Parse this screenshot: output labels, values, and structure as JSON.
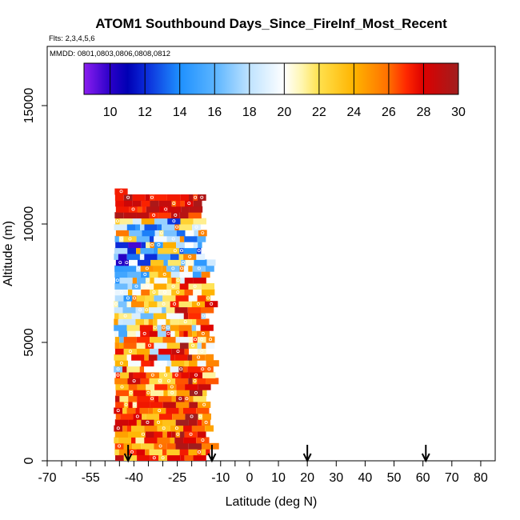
{
  "chart_data": {
    "type": "heatmap",
    "title": "ATOM1 Southbound Days_Since_FireInf_Most_Recent",
    "subtitle_flights": "Flts: 2,3,4,5,6",
    "subtitle_dates": "MMDD: 0801,0803,0806,0808,0812",
    "xlabel": "Latitude (deg N)",
    "ylabel": "Altitude (m)",
    "xlim": [
      -70,
      85
    ],
    "ylim": [
      0,
      17500
    ],
    "x_ticks_major": [
      -70,
      -55,
      -40,
      -25,
      -10,
      0,
      10,
      20,
      30,
      40,
      50,
      60,
      70,
      80
    ],
    "x_tick_labels": [
      "-70",
      "-55",
      "-40",
      "-25",
      "-10",
      "0",
      "10",
      "20",
      "30",
      "40",
      "50",
      "60",
      "70",
      "80"
    ],
    "x_ticks_minor": [
      -65,
      -60,
      -50,
      -45,
      -35,
      -30,
      -20,
      -15,
      -5
    ],
    "y_ticks": [
      0,
      5000,
      10000,
      15000
    ],
    "y_tick_labels": [
      "0",
      "5000",
      "10000",
      "15000"
    ],
    "colorbar": {
      "min": 8.5,
      "max": 30,
      "ticks": [
        10,
        12,
        14,
        16,
        18,
        20,
        22,
        24,
        26,
        28,
        30
      ],
      "tick_labels": [
        "10",
        "12",
        "14",
        "16",
        "18",
        "20",
        "22",
        "24",
        "26",
        "28",
        "30"
      ],
      "color_stops": [
        [
          8.5,
          "#8b1ef0"
        ],
        [
          10,
          "#2a00c8"
        ],
        [
          11,
          "#0000b4"
        ],
        [
          12,
          "#0a28d8"
        ],
        [
          14,
          "#1e90ff"
        ],
        [
          16,
          "#5ab4ff"
        ],
        [
          18,
          "#bfe3ff"
        ],
        [
          20,
          "#ffffff"
        ],
        [
          21,
          "#fff6b0"
        ],
        [
          22,
          "#ffe14d"
        ],
        [
          24,
          "#ffb400"
        ],
        [
          26,
          "#ff6e00"
        ],
        [
          27,
          "#ff2800"
        ],
        [
          28,
          "#dc0000"
        ],
        [
          30,
          "#a01e1e"
        ]
      ]
    },
    "arrow_latitudes": [
      -42,
      -13,
      20,
      61
    ],
    "curtain": {
      "lat_range": [
        -47,
        -15.5
      ],
      "alt_step_m": 250,
      "lat_step_deg": 1.5
    }
  }
}
